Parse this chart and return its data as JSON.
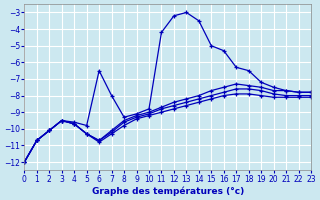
{
  "xlabel": "Graphe des températures (°c)",
  "background_color": "#cce8f0",
  "grid_color": "#ffffff",
  "line_color": "#0000bb",
  "xlim": [
    0,
    23
  ],
  "ylim": [
    -12.5,
    -2.5
  ],
  "yticks": [
    -12,
    -11,
    -10,
    -9,
    -8,
    -7,
    -6,
    -5,
    -4,
    -3
  ],
  "xticks": [
    0,
    1,
    2,
    3,
    4,
    5,
    6,
    7,
    8,
    9,
    10,
    11,
    12,
    13,
    14,
    15,
    16,
    17,
    18,
    19,
    20,
    21,
    22,
    23
  ],
  "series": [
    {
      "x": [
        0,
        1,
        2,
        3,
        4,
        5,
        6,
        7,
        8,
        9,
        10,
        11,
        12,
        13,
        14,
        15,
        16,
        17,
        18,
        19,
        20,
        21,
        22,
        23
      ],
      "y": [
        -12,
        -10.7,
        -10.1,
        -9.5,
        -9.6,
        -9.8,
        -6.5,
        -8.0,
        -9.3,
        -9.1,
        -8.8,
        -4.2,
        -3.2,
        -3.0,
        -3.5,
        -5.0,
        -5.3,
        -6.3,
        -6.5,
        -7.2,
        -7.5,
        -7.7,
        -7.8,
        -7.8
      ]
    },
    {
      "x": [
        0,
        1,
        2,
        3,
        4,
        5,
        6,
        7,
        8,
        9,
        10,
        11,
        12,
        13,
        14,
        15,
        16,
        17,
        18,
        19,
        20,
        21,
        22,
        23
      ],
      "y": [
        -12,
        -10.7,
        -10.1,
        -9.5,
        -9.7,
        -10.3,
        -10.7,
        -10.1,
        -9.5,
        -9.2,
        -9.0,
        -8.7,
        -8.4,
        -8.2,
        -8.0,
        -7.7,
        -7.5,
        -7.3,
        -7.4,
        -7.5,
        -7.7,
        -7.7,
        -7.8,
        -7.8
      ]
    },
    {
      "x": [
        0,
        1,
        2,
        3,
        4,
        5,
        6,
        7,
        8,
        9,
        10,
        11,
        12,
        13,
        14,
        15,
        16,
        17,
        18,
        19,
        20,
        21,
        22,
        23
      ],
      "y": [
        -12,
        -10.7,
        -10.1,
        -9.5,
        -9.7,
        -10.3,
        -10.7,
        -10.2,
        -9.6,
        -9.3,
        -9.1,
        -8.8,
        -8.6,
        -8.4,
        -8.2,
        -8.0,
        -7.8,
        -7.6,
        -7.6,
        -7.7,
        -7.9,
        -8.0,
        -8.0,
        -8.0
      ]
    },
    {
      "x": [
        0,
        1,
        2,
        3,
        4,
        5,
        6,
        7,
        8,
        9,
        10,
        11,
        12,
        13,
        14,
        15,
        16,
        17,
        18,
        19,
        20,
        21,
        22,
        23
      ],
      "y": [
        -12,
        -10.7,
        -10.1,
        -9.5,
        -9.7,
        -10.3,
        -10.8,
        -10.3,
        -9.8,
        -9.4,
        -9.2,
        -9.0,
        -8.8,
        -8.6,
        -8.4,
        -8.2,
        -8.0,
        -7.9,
        -7.9,
        -8.0,
        -8.1,
        -8.1,
        -8.1,
        -8.1
      ]
    }
  ]
}
